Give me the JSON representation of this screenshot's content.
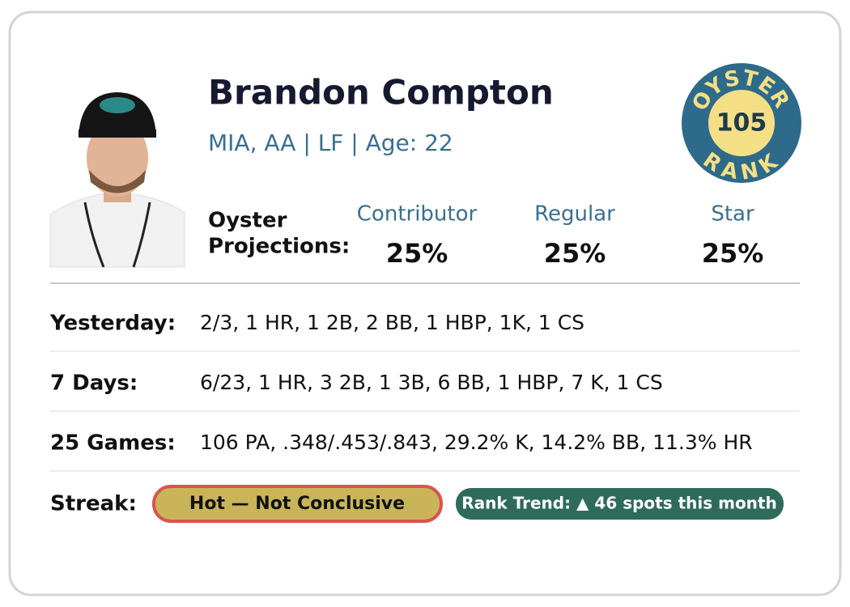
{
  "player": {
    "name": "Brandon Compton",
    "details": "MIA, AA | LF | Age: 22"
  },
  "badge": {
    "top": "OYSTER",
    "bottom": "RANK",
    "rank": "105"
  },
  "projections": {
    "label_1": "Oyster",
    "label_2": "Projections:",
    "columns": [
      {
        "name": "Contributor",
        "value": "25%"
      },
      {
        "name": "Regular",
        "value": "25%"
      },
      {
        "name": "Star",
        "value": "25%"
      }
    ]
  },
  "stats": {
    "rows": [
      [
        "Yesterday:",
        "2/3, 1 HR, 1 2B, 2 BB, 1 HBP, 1K, 1 CS"
      ],
      [
        "7 Days:",
        "6/23, 1 HR, 3 2B, 1 3B, 6 BB, 1 HBP, 7 K, 1 CS"
      ],
      [
        "25 Games:",
        "106 PA, .348/.453/.843, 29.2% K, 14.2% BB, 11.3% HR"
      ]
    ]
  },
  "streak": {
    "label": "Streak:",
    "status": "Hot — Not Conclusive",
    "trend": "Rank Trend: ▲ 46 spots this month"
  }
}
